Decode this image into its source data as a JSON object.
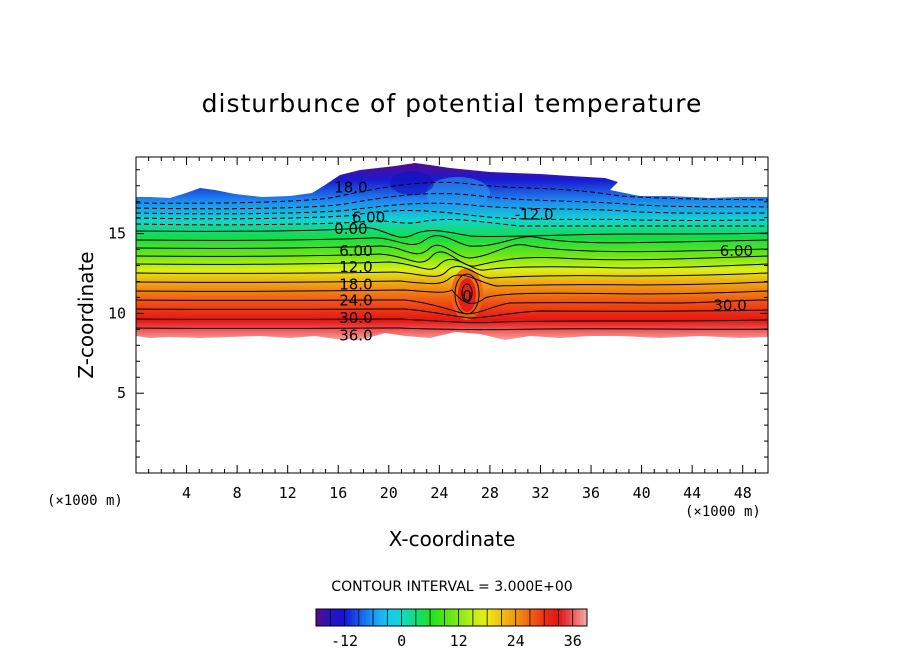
{
  "chart_data": {
    "type": "contour",
    "title": "disturbunce of potential temperature",
    "xlabel": "X-coordinate",
    "ylabel": "Z-coordinate",
    "x_unit": "(×1000 m)",
    "z_unit": "(×1000 m)",
    "xlim": [
      0,
      50
    ],
    "ylim": [
      0,
      19.8
    ],
    "x_ticks": [
      4,
      8,
      12,
      16,
      20,
      24,
      28,
      32,
      36,
      40,
      44,
      48
    ],
    "y_ticks": [
      5,
      10,
      15
    ],
    "contour_interval_text": "CONTOUR INTERVAL = 3.000E+00",
    "contour_interval": 3,
    "value_range": [
      -18,
      39
    ],
    "colorbar_ticks": [
      -12,
      0,
      12,
      24,
      36
    ],
    "contour_labels": [
      {
        "text": "18.0",
        "x": 17,
        "z": 17.9
      },
      {
        "text": "6.00",
        "x": 18.4,
        "z": 16.0
      },
      {
        "text": "0.00",
        "x": 17.0,
        "z": 15.3
      },
      {
        "text": "-12.0",
        "x": 31.5,
        "z": 16.2
      },
      {
        "text": "6.00",
        "x": 17.4,
        "z": 13.9
      },
      {
        "text": "12.0",
        "x": 17.4,
        "z": 12.9
      },
      {
        "text": "18.0",
        "x": 17.4,
        "z": 11.8
      },
      {
        "text": "24.0",
        "x": 17.4,
        "z": 10.8
      },
      {
        "text": "30.0",
        "x": 17.4,
        "z": 9.7
      },
      {
        "text": "36.0",
        "x": 17.4,
        "z": 8.6
      },
      {
        "text": "6.00",
        "x": 47.5,
        "z": 13.9
      },
      {
        "text": "30.0",
        "x": 47.0,
        "z": 10.5
      },
      {
        "text": "0",
        "x": 26.2,
        "z": 11.1
      }
    ]
  }
}
